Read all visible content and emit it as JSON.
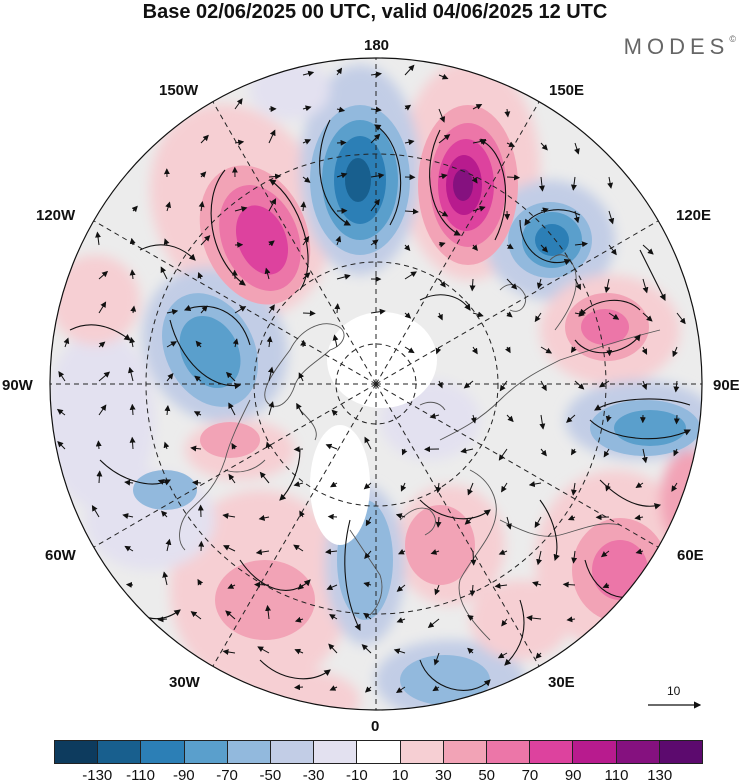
{
  "title": "Base 02/06/2025 00 UTC, valid 04/06/2025 12 UTC",
  "brand": {
    "name": "MODES",
    "mark": "©"
  },
  "longitude_labels": {
    "lon_180": "180",
    "lon_150e": "150E",
    "lon_120e": "120E",
    "lon_90e": "90E",
    "lon_60e": "60E",
    "lon_30e": "30E",
    "lon_0": "0",
    "lon_30w": "30W",
    "lon_60w": "60W",
    "lon_90w": "90W",
    "lon_120w": "120W",
    "lon_150w": "150W"
  },
  "reference_vector": {
    "label": "10"
  },
  "colorbar": {
    "labels": [
      "-130",
      "-110",
      "-90",
      "-70",
      "-50",
      "-30",
      "-10",
      "10",
      "30",
      "50",
      "70",
      "90",
      "110",
      "130"
    ],
    "colors": [
      "#0d3b5e",
      "#185f8e",
      "#2c7fb6",
      "#5a9fcc",
      "#92b9dd",
      "#c2cde6",
      "#e3e1f0",
      "#ffffff",
      "#f6cfd3",
      "#f2a3b6",
      "#ec76a8",
      "#dd429e",
      "#b81b8e",
      "#85117f",
      "#5c0a6e"
    ]
  },
  "anomaly_cells": [
    {
      "name": "blue-center-north",
      "color": "#2c7fb6",
      "value": -90
    },
    {
      "name": "purple-center-north-east",
      "color": "#85117f",
      "value": 110
    },
    {
      "name": "magenta-center-north-west",
      "color": "#dd429e",
      "value": 90
    },
    {
      "name": "blue-center-east-pacific-asia",
      "color": "#2c7fb6",
      "value": -90
    },
    {
      "name": "blue-center-west-canada",
      "color": "#5a9fcc",
      "value": -70
    },
    {
      "name": "pink-center-east-siberia",
      "color": "#ec76a8",
      "value": 70
    },
    {
      "name": "blue-center-east-asia",
      "color": "#5a9fcc",
      "value": -70
    },
    {
      "name": "pink-center-central-asia",
      "color": "#ec76a8",
      "value": 70
    },
    {
      "name": "blue-center-atlantic",
      "color": "#92b9dd",
      "value": -50
    },
    {
      "name": "blue-center-europe",
      "color": "#92b9dd",
      "value": -50
    }
  ]
}
